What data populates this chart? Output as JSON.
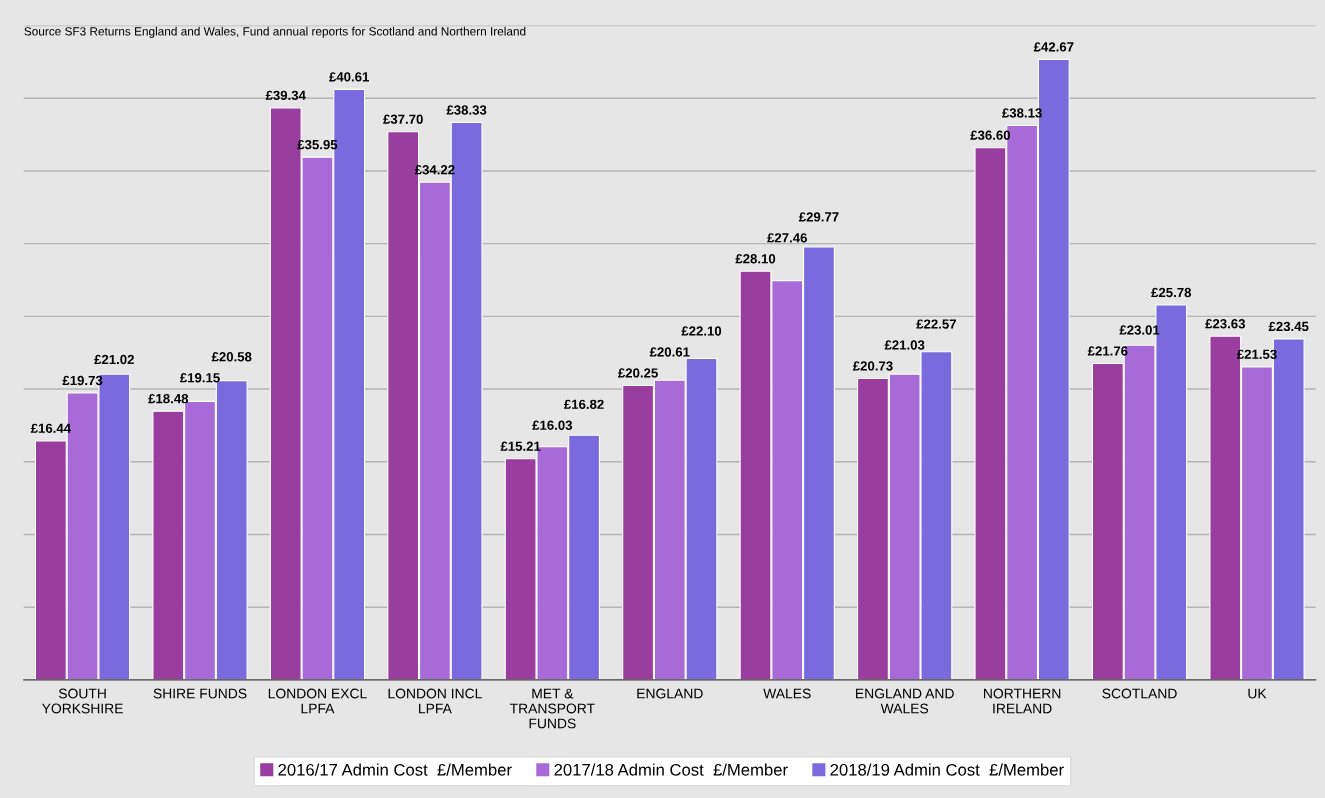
{
  "chart_data": {
    "type": "bar",
    "categories": [
      "SOUTH YORKSHIRE",
      "SHIRE FUNDS",
      "LONDON EXCL LPFA",
      "LONDON INCL LPFA",
      "MET & TRANSPORT FUNDS",
      "ENGLAND",
      "WALES",
      "ENGLAND AND WALES",
      "NORTHERN IRELAND",
      "SCOTLAND",
      "UK"
    ],
    "series": [
      {
        "name": "2016/17 Admin Cost  £/Member",
        "color": "#993d9e",
        "values": [
          16.44,
          18.48,
          39.34,
          37.7,
          15.21,
          20.25,
          28.1,
          20.73,
          36.6,
          21.76,
          23.63
        ],
        "value_labels": [
          "£16.44",
          "£18.48",
          "£39.34",
          "£37.70",
          "£15.21",
          "£20.25",
          "£28.10",
          "£20.73",
          "£36.60",
          "£21.76",
          "£23.63"
        ]
      },
      {
        "name": "2017/18 Admin Cost  £/Member",
        "color": "#a76ad6",
        "values": [
          19.73,
          19.15,
          35.95,
          34.22,
          16.03,
          20.61,
          27.46,
          21.03,
          38.13,
          23.01,
          21.53
        ],
        "value_labels": [
          "£19.73",
          "£19.15",
          "£35.95",
          "£34.22",
          "£16.03",
          "£20.61",
          "£27.46",
          "£21.03",
          "£38.13",
          "£23.01",
          "£21.53"
        ]
      },
      {
        "name": "2018/19 Admin Cost  £/Member",
        "color": "#7b6ade",
        "values": [
          21.02,
          20.58,
          40.61,
          38.33,
          16.82,
          22.1,
          29.77,
          22.57,
          42.67,
          25.78,
          23.45
        ],
        "value_labels": [
          "£21.02",
          "£20.58",
          "£40.61",
          "£38.33",
          "£16.82",
          "£22.10",
          "£29.77",
          "£22.57",
          "£42.67",
          "£25.78",
          "£23.45"
        ]
      }
    ],
    "ylim": [
      0,
      45
    ],
    "yticks": [
      {
        "value": 5,
        "label": null
      },
      {
        "value": 10,
        "label": null
      },
      {
        "value": 15,
        "label": null
      },
      {
        "value": 20,
        "label": null
      },
      {
        "value": 25,
        "label": null
      },
      {
        "value": 30,
        "label": null
      },
      {
        "value": 35,
        "label": null
      },
      {
        "value": 40,
        "label": null
      },
      {
        "value": 45,
        "label": null
      }
    ],
    "tick_labels": "x",
    "grid": "y",
    "legend": "bottom",
    "annotations": [
      "Source SF3 Returns England and Wales, Fund annual reports for Scotland and Northern Ireland"
    ]
  }
}
